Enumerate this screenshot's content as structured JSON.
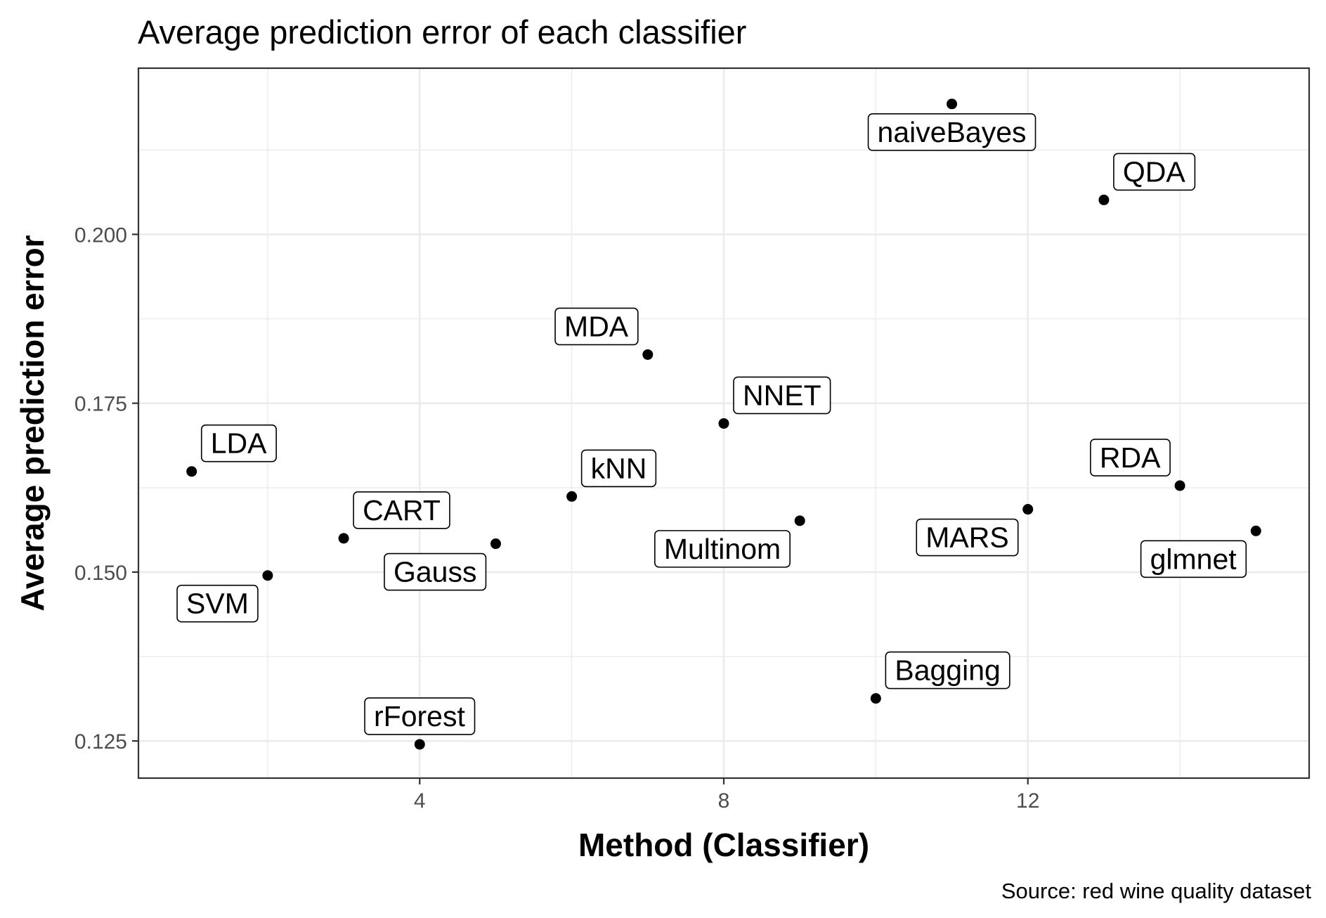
{
  "chart_data": {
    "type": "scatter",
    "title": "Average prediction error of each classifier",
    "xlabel": "Method (Classifier)",
    "ylabel": "Average prediction error",
    "caption": "Source: red wine quality dataset",
    "xlim": [
      0.3,
      15.7
    ],
    "ylim": [
      0.1195,
      0.2246
    ],
    "x_ticks": [
      4,
      8,
      12
    ],
    "y_ticks": [
      0.125,
      0.15,
      0.175,
      0.2
    ],
    "x_tick_labels": [
      "4",
      "8",
      "12"
    ],
    "y_tick_labels": [
      "0.125",
      "0.150",
      "0.175",
      "0.200"
    ],
    "grid": true,
    "points": [
      {
        "label": "LDA",
        "x": 1,
        "y": 0.1649,
        "label_side": "upper-right"
      },
      {
        "label": "SVM",
        "x": 2,
        "y": 0.1495,
        "label_side": "lower-left"
      },
      {
        "label": "CART",
        "x": 3,
        "y": 0.155,
        "label_side": "upper-right"
      },
      {
        "label": "rForest",
        "x": 4,
        "y": 0.1245,
        "label_side": "upper-center"
      },
      {
        "label": "Gauss",
        "x": 5,
        "y": 0.1542,
        "label_side": "lower-left"
      },
      {
        "label": "kNN",
        "x": 6,
        "y": 0.1612,
        "label_side": "upper-right"
      },
      {
        "label": "MDA",
        "x": 7,
        "y": 0.1822,
        "label_side": "upper-left"
      },
      {
        "label": "NNET",
        "x": 8,
        "y": 0.172,
        "label_side": "upper-right"
      },
      {
        "label": "Multinom",
        "x": 9,
        "y": 0.1576,
        "label_side": "lower-left"
      },
      {
        "label": "Bagging",
        "x": 10,
        "y": 0.1313,
        "label_side": "upper-right"
      },
      {
        "label": "naiveBayes",
        "x": 11,
        "y": 0.2193,
        "label_side": "lower-center"
      },
      {
        "label": "MARS",
        "x": 12,
        "y": 0.1593,
        "label_side": "lower-left"
      },
      {
        "label": "QDA",
        "x": 13,
        "y": 0.2051,
        "label_side": "upper-right"
      },
      {
        "label": "RDA",
        "x": 14,
        "y": 0.1628,
        "label_side": "upper-left"
      },
      {
        "label": "glmnet",
        "x": 15,
        "y": 0.1561,
        "label_side": "lower-left"
      }
    ]
  }
}
